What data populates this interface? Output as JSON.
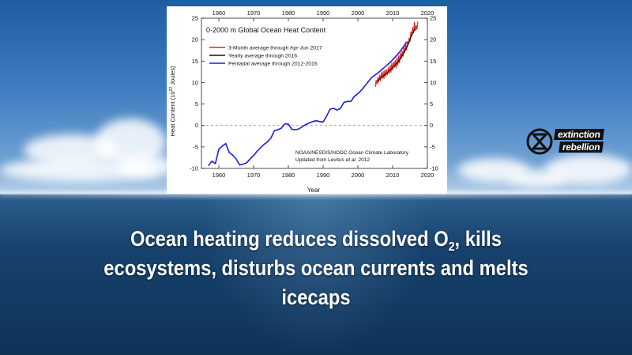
{
  "chart_data": {
    "type": "line",
    "title": "0-2000 m Global Ocean Heat Content",
    "xlabel": "Year",
    "ylabel": "Heat Content (10",
    "ylabel_exp": "22",
    "ylabel_tail": " Joules)",
    "xlim": [
      1955,
      2020
    ],
    "ylim": [
      -10,
      25
    ],
    "xticks": [
      1960,
      1970,
      1980,
      1990,
      2000,
      2010,
      2020
    ],
    "yticks": [
      -10,
      -5,
      0,
      5,
      10,
      15,
      20,
      25
    ],
    "grid": false,
    "zero_line": "dashed",
    "legend_position": "top-left",
    "credit_line1": "NOAA/NESDIS/NODC Ocean Climate Laboratory",
    "credit_line2_prefix": "Updated from Levitus ",
    "credit_line2_etal": "et al.",
    "credit_line2_suffix": " 2012",
    "series": [
      {
        "name": "3-Month average through Apr-Jun 2017",
        "color": "#e8281e",
        "x": [
          2005.0,
          2005.25,
          2005.5,
          2005.75,
          2006.0,
          2006.25,
          2006.5,
          2006.75,
          2007.0,
          2007.25,
          2007.5,
          2007.75,
          2008.0,
          2008.25,
          2008.5,
          2008.75,
          2009.0,
          2009.25,
          2009.5,
          2009.75,
          2010.0,
          2010.25,
          2010.5,
          2010.75,
          2011.0,
          2011.25,
          2011.5,
          2011.75,
          2012.0,
          2012.25,
          2012.5,
          2012.75,
          2013.0,
          2013.25,
          2013.5,
          2013.75,
          2014.0,
          2014.25,
          2014.5,
          2014.75,
          2015.0,
          2015.25,
          2015.5,
          2015.75,
          2016.0,
          2016.25,
          2016.5,
          2016.75,
          2017.0,
          2017.25
        ],
        "values": [
          9.0,
          10.5,
          9.6,
          11.2,
          10.1,
          11.8,
          10.4,
          12.3,
          11.0,
          12.6,
          10.9,
          12.9,
          11.4,
          13.0,
          11.8,
          13.5,
          12.1,
          14.0,
          12.4,
          14.5,
          12.9,
          14.8,
          13.6,
          15.2,
          13.4,
          15.8,
          14.1,
          16.3,
          14.6,
          16.9,
          15.6,
          17.4,
          16.1,
          18.2,
          17.0,
          18.9,
          17.6,
          19.6,
          18.9,
          20.4,
          19.6,
          21.8,
          20.9,
          22.8,
          21.6,
          24.0,
          22.1,
          23.3,
          22.4,
          24.2
        ]
      },
      {
        "name": "Yearly average through 2016",
        "color": "#111111",
        "x": [
          2005.5,
          2006.5,
          2007.5,
          2008.5,
          2009.5,
          2010.5,
          2011.5,
          2012.5,
          2013.5,
          2014.5,
          2015.5,
          2016.5
        ],
        "values": [
          10.2,
          11.0,
          11.6,
          12.3,
          13.0,
          13.8,
          14.7,
          15.9,
          17.3,
          18.9,
          21.1,
          22.6
        ]
      },
      {
        "name": "Pentadal average through 2012-2016",
        "color": "#1a1ee0",
        "x": [
          1957,
          1958,
          1959,
          1960,
          1961,
          1962,
          1963,
          1964,
          1965,
          1966,
          1967,
          1968,
          1969,
          1970,
          1971,
          1972,
          1973,
          1974,
          1975,
          1976,
          1977,
          1978,
          1979,
          1980,
          1981,
          1982,
          1983,
          1984,
          1985,
          1986,
          1987,
          1988,
          1989,
          1990,
          1991,
          1992,
          1993,
          1994,
          1995,
          1996,
          1997,
          1998,
          1999,
          2000,
          2001,
          2002,
          2003,
          2004,
          2005,
          2006,
          2007,
          2008,
          2009,
          2010,
          2011,
          2012,
          2013,
          2014
        ],
        "values": [
          -9.4,
          -8.3,
          -8.9,
          -5.5,
          -4.8,
          -4.2,
          -6.3,
          -6.9,
          -7.8,
          -9.2,
          -9.0,
          -8.7,
          -7.8,
          -7.0,
          -6.0,
          -5.2,
          -4.4,
          -3.8,
          -2.9,
          -1.2,
          -1.0,
          -0.6,
          0.4,
          0.3,
          -0.9,
          -1.0,
          -0.8,
          -0.3,
          0.2,
          0.6,
          0.9,
          1.1,
          0.9,
          0.8,
          2.2,
          3.8,
          4.0,
          3.6,
          4.0,
          5.4,
          5.6,
          5.6,
          6.8,
          7.4,
          8.2,
          9.2,
          10.2,
          11.2,
          11.8,
          12.4,
          13.1,
          13.8,
          14.5,
          15.3,
          16.2,
          17.1,
          18.2,
          19.5
        ]
      }
    ]
  },
  "caption": {
    "line1_a": "Ocean heating reduces dissolved O",
    "line1_sub": "2",
    "line1_b": ", kills",
    "line2": "ecosystems, disturbs ocean currents and melts",
    "line3": "icecaps"
  },
  "logo": {
    "word1": "extinction",
    "word2": "rebellion"
  }
}
